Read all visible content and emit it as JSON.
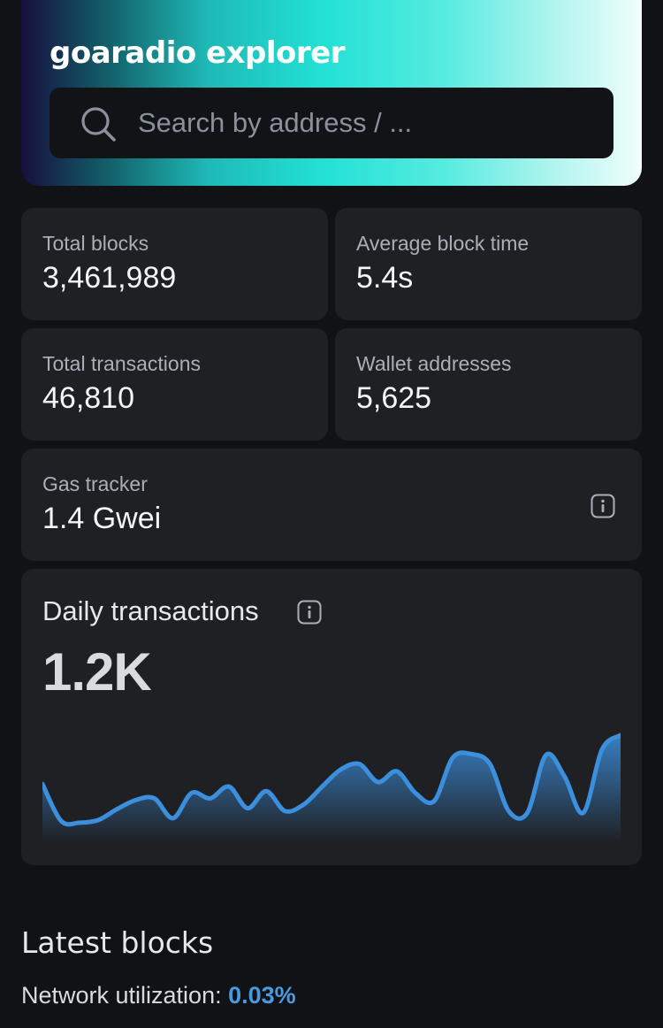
{
  "hero": {
    "title": "goaradio explorer",
    "search_placeholder": "Search by address / ..."
  },
  "stats": [
    {
      "label": "Total blocks",
      "value": "3,461,989"
    },
    {
      "label": "Average block time",
      "value": "5.4s"
    },
    {
      "label": "Total transactions",
      "value": "46,810"
    },
    {
      "label": "Wallet addresses",
      "value": "5,625"
    }
  ],
  "gas": {
    "label": "Gas tracker",
    "value": "1.4 Gwei"
  },
  "daily": {
    "title": "Daily transactions",
    "value": "1.2K"
  },
  "chart_data": {
    "type": "area",
    "title": "Daily transactions",
    "xlabel": "",
    "ylabel": "",
    "values": [
      0.46,
      0.05,
      0.03,
      0.06,
      0.18,
      0.28,
      0.3,
      0.08,
      0.36,
      0.3,
      0.43,
      0.19,
      0.38,
      0.16,
      0.23,
      0.43,
      0.62,
      0.68,
      0.48,
      0.6,
      0.36,
      0.27,
      0.75,
      0.79,
      0.68,
      0.16,
      0.14,
      0.78,
      0.54,
      0.14,
      0.84,
      1.0
    ],
    "ylim": [
      0,
      1
    ],
    "grid": false,
    "color": "#3b8fdc"
  },
  "latest": {
    "title": "Latest blocks",
    "util_label": "Network utilization:",
    "util_value": "0.03%"
  }
}
